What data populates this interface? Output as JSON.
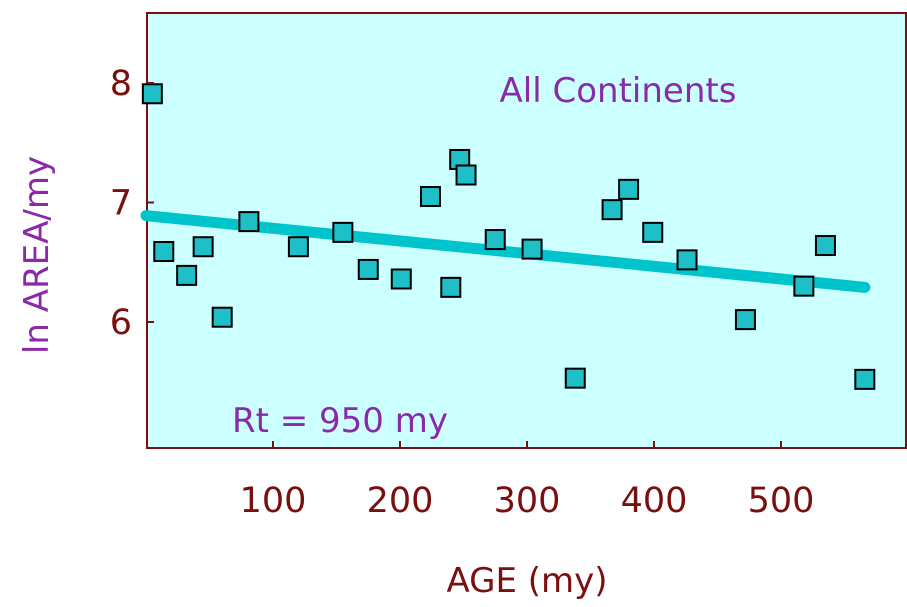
{
  "chart_data": {
    "type": "scatter",
    "title": "",
    "xlabel": "AGE (my)",
    "ylabel": "ln AREA/my",
    "xlim": [
      0,
      580
    ],
    "ylim": [
      5.0,
      8.5
    ],
    "x_ticks": [
      100,
      200,
      300,
      400,
      500
    ],
    "y_ticks": [
      6,
      7,
      8
    ],
    "grid": false,
    "legend": "none",
    "annotations": {
      "label": "All Continents",
      "rt": "Rt = 950 my"
    },
    "series": [
      {
        "marker": "square",
        "points": [
          {
            "x": 5,
            "y": 7.91
          },
          {
            "x": 14,
            "y": 6.59
          },
          {
            "x": 32,
            "y": 6.39
          },
          {
            "x": 45,
            "y": 6.63
          },
          {
            "x": 60,
            "y": 6.04
          },
          {
            "x": 81,
            "y": 6.84
          },
          {
            "x": 120,
            "y": 6.63
          },
          {
            "x": 155,
            "y": 6.75
          },
          {
            "x": 175,
            "y": 6.44
          },
          {
            "x": 201,
            "y": 6.36
          },
          {
            "x": 224,
            "y": 7.05
          },
          {
            "x": 240,
            "y": 6.29
          },
          {
            "x": 247,
            "y": 7.36
          },
          {
            "x": 252,
            "y": 7.23
          },
          {
            "x": 275,
            "y": 6.69
          },
          {
            "x": 304,
            "y": 6.61
          },
          {
            "x": 338,
            "y": 5.53
          },
          {
            "x": 367,
            "y": 6.94
          },
          {
            "x": 380,
            "y": 7.11
          },
          {
            "x": 399,
            "y": 6.75
          },
          {
            "x": 426,
            "y": 6.52
          },
          {
            "x": 472,
            "y": 6.02
          },
          {
            "x": 518,
            "y": 6.3
          },
          {
            "x": 535,
            "y": 6.64
          },
          {
            "x": 566,
            "y": 5.52
          }
        ]
      }
    ],
    "trendline": {
      "x": [
        0,
        566
      ],
      "y": [
        6.89,
        6.29
      ]
    },
    "colors": {
      "plot_background": "#ccffff",
      "frame": "#7a0f0f",
      "marker_fill": "#1fbfc8",
      "marker_stroke": "#000000",
      "trendline": "#00c4cc",
      "tick_label": "#7a0f0f",
      "ylabel": "#8a2aa8",
      "xlabel": "#7a0f0f",
      "annotation": "#8a2aa8"
    }
  }
}
